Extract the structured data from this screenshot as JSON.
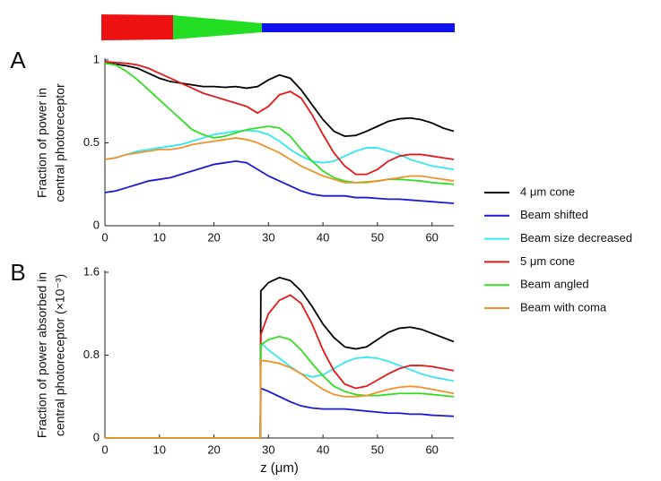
{
  "chart_data": [
    {
      "type": "line",
      "panel": "A",
      "ylabel": [
        "Fraction of power in",
        "central photoreceptor"
      ],
      "xlim": [
        0,
        64
      ],
      "xticks": [
        0,
        10,
        20,
        30,
        40,
        50,
        60
      ],
      "ylim": [
        0,
        1
      ],
      "yticks": [
        0,
        0.5,
        1
      ],
      "x": [
        0,
        2,
        4,
        6,
        8,
        10,
        12,
        14,
        16,
        18,
        20,
        22,
        24,
        26,
        28,
        30,
        32,
        34,
        36,
        38,
        40,
        42,
        44,
        46,
        48,
        50,
        52,
        54,
        56,
        58,
        60,
        62,
        64
      ],
      "series": [
        {
          "name": "4  μm cone",
          "color": "#000000",
          "values": [
            0.98,
            0.975,
            0.965,
            0.95,
            0.92,
            0.89,
            0.87,
            0.86,
            0.85,
            0.84,
            0.84,
            0.835,
            0.84,
            0.83,
            0.84,
            0.88,
            0.91,
            0.89,
            0.82,
            0.73,
            0.64,
            0.57,
            0.54,
            0.545,
            0.57,
            0.6,
            0.63,
            0.645,
            0.65,
            0.64,
            0.62,
            0.59,
            0.57
          ]
        },
        {
          "name": "Beam shifted",
          "color": "#1a1ad6",
          "values": [
            0.2,
            0.21,
            0.23,
            0.25,
            0.27,
            0.28,
            0.29,
            0.31,
            0.33,
            0.35,
            0.37,
            0.38,
            0.39,
            0.38,
            0.34,
            0.3,
            0.27,
            0.24,
            0.21,
            0.19,
            0.18,
            0.18,
            0.18,
            0.17,
            0.17,
            0.165,
            0.16,
            0.16,
            0.155,
            0.15,
            0.145,
            0.14,
            0.135
          ]
        },
        {
          "name": "Beam size decreased",
          "color": "#33e8f2",
          "values": [
            0.4,
            0.41,
            0.43,
            0.45,
            0.46,
            0.47,
            0.48,
            0.49,
            0.51,
            0.53,
            0.55,
            0.56,
            0.57,
            0.575,
            0.57,
            0.55,
            0.51,
            0.46,
            0.42,
            0.39,
            0.38,
            0.39,
            0.42,
            0.45,
            0.47,
            0.47,
            0.45,
            0.43,
            0.4,
            0.38,
            0.36,
            0.35,
            0.34
          ]
        },
        {
          "name": "5 μm cone",
          "color": "#e41a1a",
          "values": [
            0.99,
            0.985,
            0.98,
            0.97,
            0.95,
            0.92,
            0.89,
            0.86,
            0.83,
            0.8,
            0.78,
            0.76,
            0.74,
            0.72,
            0.68,
            0.72,
            0.79,
            0.81,
            0.77,
            0.67,
            0.55,
            0.44,
            0.36,
            0.31,
            0.31,
            0.34,
            0.39,
            0.42,
            0.43,
            0.43,
            0.42,
            0.41,
            0.4
          ]
        },
        {
          "name": "Beam angled",
          "color": "#33dd22",
          "values": [
            0.98,
            0.97,
            0.93,
            0.88,
            0.82,
            0.76,
            0.7,
            0.64,
            0.58,
            0.55,
            0.53,
            0.54,
            0.56,
            0.58,
            0.59,
            0.6,
            0.59,
            0.54,
            0.46,
            0.39,
            0.33,
            0.29,
            0.27,
            0.26,
            0.265,
            0.27,
            0.28,
            0.28,
            0.275,
            0.27,
            0.26,
            0.255,
            0.25
          ]
        },
        {
          "name": "Beam with coma",
          "color": "#f0922a",
          "values": [
            0.4,
            0.41,
            0.43,
            0.44,
            0.45,
            0.46,
            0.46,
            0.47,
            0.49,
            0.5,
            0.51,
            0.52,
            0.53,
            0.52,
            0.5,
            0.47,
            0.44,
            0.4,
            0.36,
            0.33,
            0.3,
            0.28,
            0.26,
            0.26,
            0.26,
            0.27,
            0.28,
            0.29,
            0.3,
            0.3,
            0.29,
            0.28,
            0.27
          ]
        }
      ]
    },
    {
      "type": "line",
      "panel": "B",
      "ylabel": [
        "Fraction of power absorbed in",
        "central photoreceptor (×10⁻³)"
      ],
      "xlabel": "z (μm)",
      "xlim": [
        0,
        64
      ],
      "xticks": [
        0,
        10,
        20,
        30,
        40,
        50,
        60
      ],
      "ylim": [
        0,
        1.6
      ],
      "yticks": [
        0,
        0.8,
        1.6
      ],
      "x": [
        0,
        28.5,
        28.6,
        30,
        32,
        34,
        36,
        38,
        40,
        42,
        44,
        46,
        48,
        50,
        52,
        54,
        56,
        58,
        60,
        62,
        64
      ],
      "series": [
        {
          "color": "#000000",
          "values": [
            0,
            0,
            1.42,
            1.5,
            1.55,
            1.52,
            1.42,
            1.27,
            1.1,
            0.97,
            0.88,
            0.86,
            0.88,
            0.95,
            1.02,
            1.06,
            1.07,
            1.05,
            1.01,
            0.97,
            0.93
          ]
        },
        {
          "color": "#1a1ad6",
          "values": [
            0,
            0,
            0.48,
            0.45,
            0.4,
            0.35,
            0.31,
            0.29,
            0.28,
            0.28,
            0.28,
            0.27,
            0.26,
            0.25,
            0.24,
            0.24,
            0.23,
            0.23,
            0.22,
            0.215,
            0.21
          ]
        },
        {
          "color": "#33e8f2",
          "values": [
            0,
            0,
            0.92,
            0.85,
            0.77,
            0.69,
            0.62,
            0.59,
            0.61,
            0.67,
            0.73,
            0.77,
            0.78,
            0.77,
            0.74,
            0.7,
            0.66,
            0.62,
            0.59,
            0.57,
            0.55
          ]
        },
        {
          "color": "#e41a1a",
          "values": [
            0,
            0,
            1.0,
            1.2,
            1.33,
            1.38,
            1.3,
            1.1,
            0.85,
            0.65,
            0.52,
            0.48,
            0.5,
            0.56,
            0.62,
            0.67,
            0.7,
            0.7,
            0.69,
            0.67,
            0.65
          ]
        },
        {
          "color": "#33dd22",
          "values": [
            0,
            0,
            0.9,
            0.95,
            0.98,
            0.95,
            0.85,
            0.72,
            0.6,
            0.5,
            0.45,
            0.42,
            0.41,
            0.41,
            0.42,
            0.43,
            0.43,
            0.43,
            0.42,
            0.41,
            0.4
          ]
        },
        {
          "color": "#f0922a",
          "values": [
            0,
            0,
            0.75,
            0.74,
            0.72,
            0.68,
            0.62,
            0.54,
            0.47,
            0.42,
            0.4,
            0.4,
            0.41,
            0.44,
            0.47,
            0.49,
            0.5,
            0.49,
            0.47,
            0.45,
            0.43
          ]
        }
      ]
    }
  ]
}
